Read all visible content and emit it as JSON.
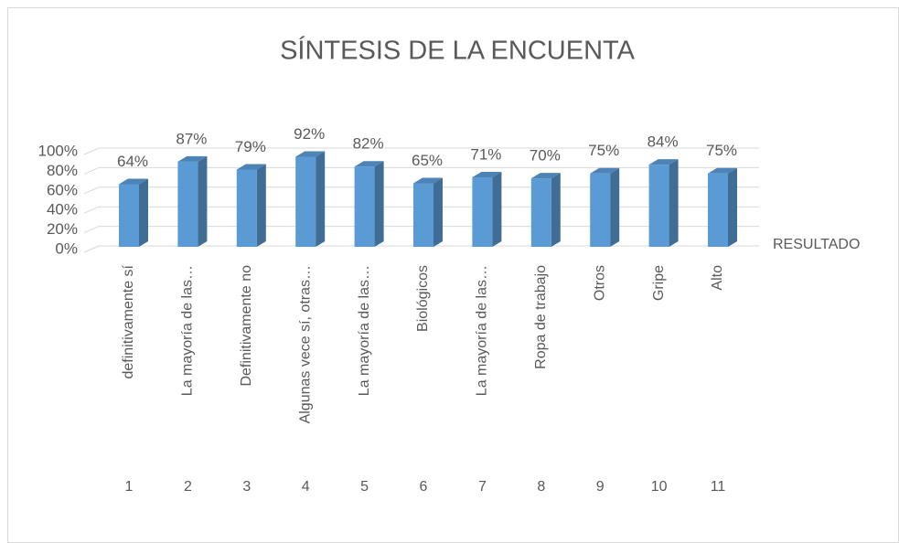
{
  "chart_data": {
    "type": "bar",
    "title": "SÍNTESIS DE LA ENCUENTA",
    "categories": [
      "definitivamente sí",
      "La mayoría de las…",
      "Definitivamente no",
      "Algunas vece sí, otras…",
      "La mayoría de las…",
      "Biológicos",
      "La mayoría de las…",
      "Ropa de trabajo",
      "Otros",
      "Gripe",
      "Alto"
    ],
    "category_groups": [
      "1",
      "2",
      "3",
      "4",
      "5",
      "6",
      "7",
      "8",
      "9",
      "10",
      "11"
    ],
    "series": [
      {
        "name": "RESULTADO",
        "color": "#5b9bd5",
        "values": [
          64,
          87,
          79,
          92,
          82,
          65,
          71,
          70,
          75,
          84,
          75
        ],
        "value_labels": [
          "64%",
          "87%",
          "79%",
          "92%",
          "82%",
          "65%",
          "71%",
          "70%",
          "75%",
          "84%",
          "75%"
        ]
      }
    ],
    "ylim": [
      0,
      100
    ],
    "yticks": [
      {
        "value": 0,
        "label": "0%"
      },
      {
        "value": 20,
        "label": "20%"
      },
      {
        "value": 40,
        "label": "40%"
      },
      {
        "value": 60,
        "label": "60%"
      },
      {
        "value": 80,
        "label": "80%"
      },
      {
        "value": 100,
        "label": "100%"
      }
    ],
    "grid": true,
    "legend": "right"
  }
}
